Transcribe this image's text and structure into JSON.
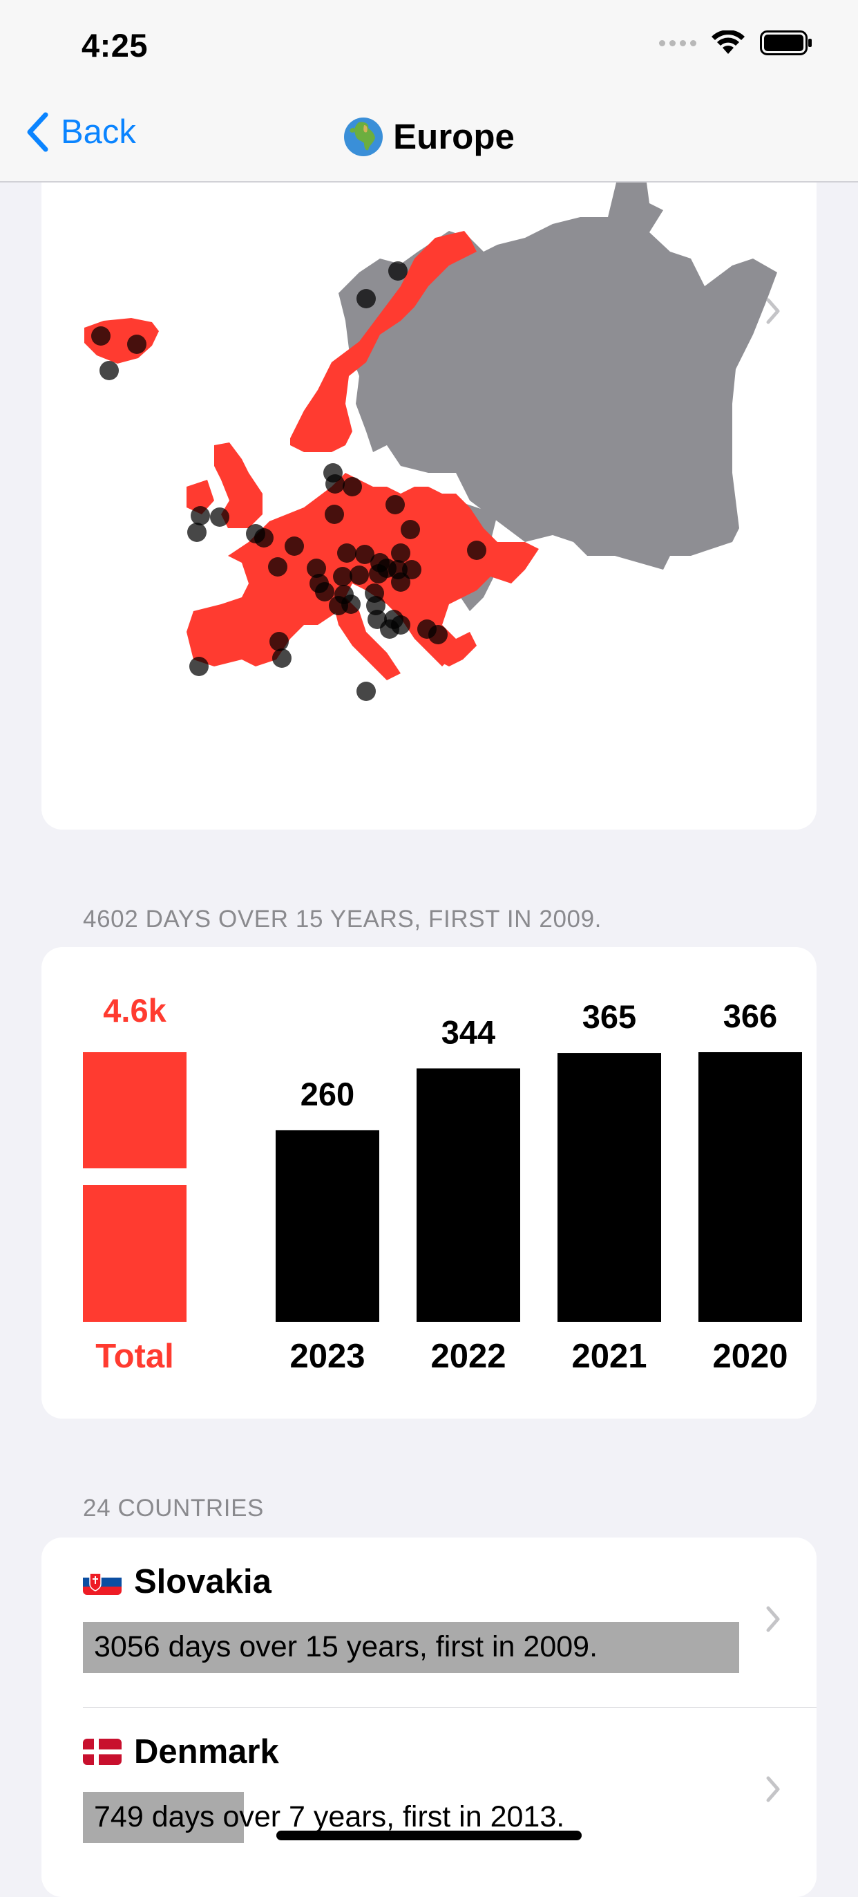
{
  "status": {
    "time": "4:25"
  },
  "nav": {
    "back_label": "Back",
    "title": "Europe",
    "title_icon": "globe-europe-africa"
  },
  "colors": {
    "accent": "#ff3b30",
    "link": "#0a84ff",
    "bars": "#000000",
    "land_grey": "#8e8e93",
    "highlight": "#aaaaaa"
  },
  "summary": {
    "header": "4602 DAYS OVER 15 YEARS, FIRST IN 2009."
  },
  "chart_data": {
    "type": "bar",
    "total": {
      "label": "Total",
      "value_label": "4.6k"
    },
    "categories": [
      "2023",
      "2022",
      "2021",
      "2020"
    ],
    "values": [
      260,
      344,
      365,
      366
    ],
    "ylim": [
      0,
      366
    ]
  },
  "countries": {
    "header": "24 COUNTRIES",
    "items": [
      {
        "name": "Slovakia",
        "flag": "slovakia-flag",
        "subtitle": "3056 days over 15 years, first in 2009.",
        "fraction": 1.0
      },
      {
        "name": "Denmark",
        "flag": "denmark-flag",
        "subtitle": "749 days over 7 years, first in 2013.",
        "fraction": 0.245
      }
    ]
  }
}
